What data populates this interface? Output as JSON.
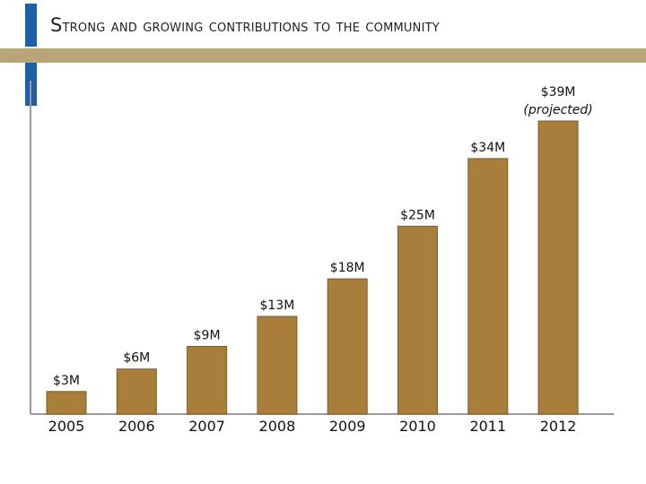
{
  "slide": {
    "title_first": "S",
    "title_rest": "trong and growing contributions to the community"
  },
  "chart_data": {
    "type": "bar",
    "title": "Strong and growing contributions to the community",
    "categories": [
      "2005",
      "2006",
      "2007",
      "2008",
      "2009",
      "2010",
      "2011",
      "2012"
    ],
    "values": [
      3,
      6,
      9,
      13,
      18,
      25,
      34,
      39
    ],
    "data_labels": [
      "$3M",
      "$6M",
      "$9M",
      "$13M",
      "$18M",
      "$25M",
      "$34M",
      "$39M"
    ],
    "annotations": {
      "7": "(projected)"
    },
    "unit": "$M",
    "xlabel": "",
    "ylabel": "",
    "ylim": [
      0,
      39
    ],
    "grid": false,
    "legend": "none",
    "colors": {
      "bar": "#a97d3a",
      "bar_edge": "#7e5c26",
      "accent": "#1f5fa8",
      "band": "#b9a57a"
    }
  }
}
